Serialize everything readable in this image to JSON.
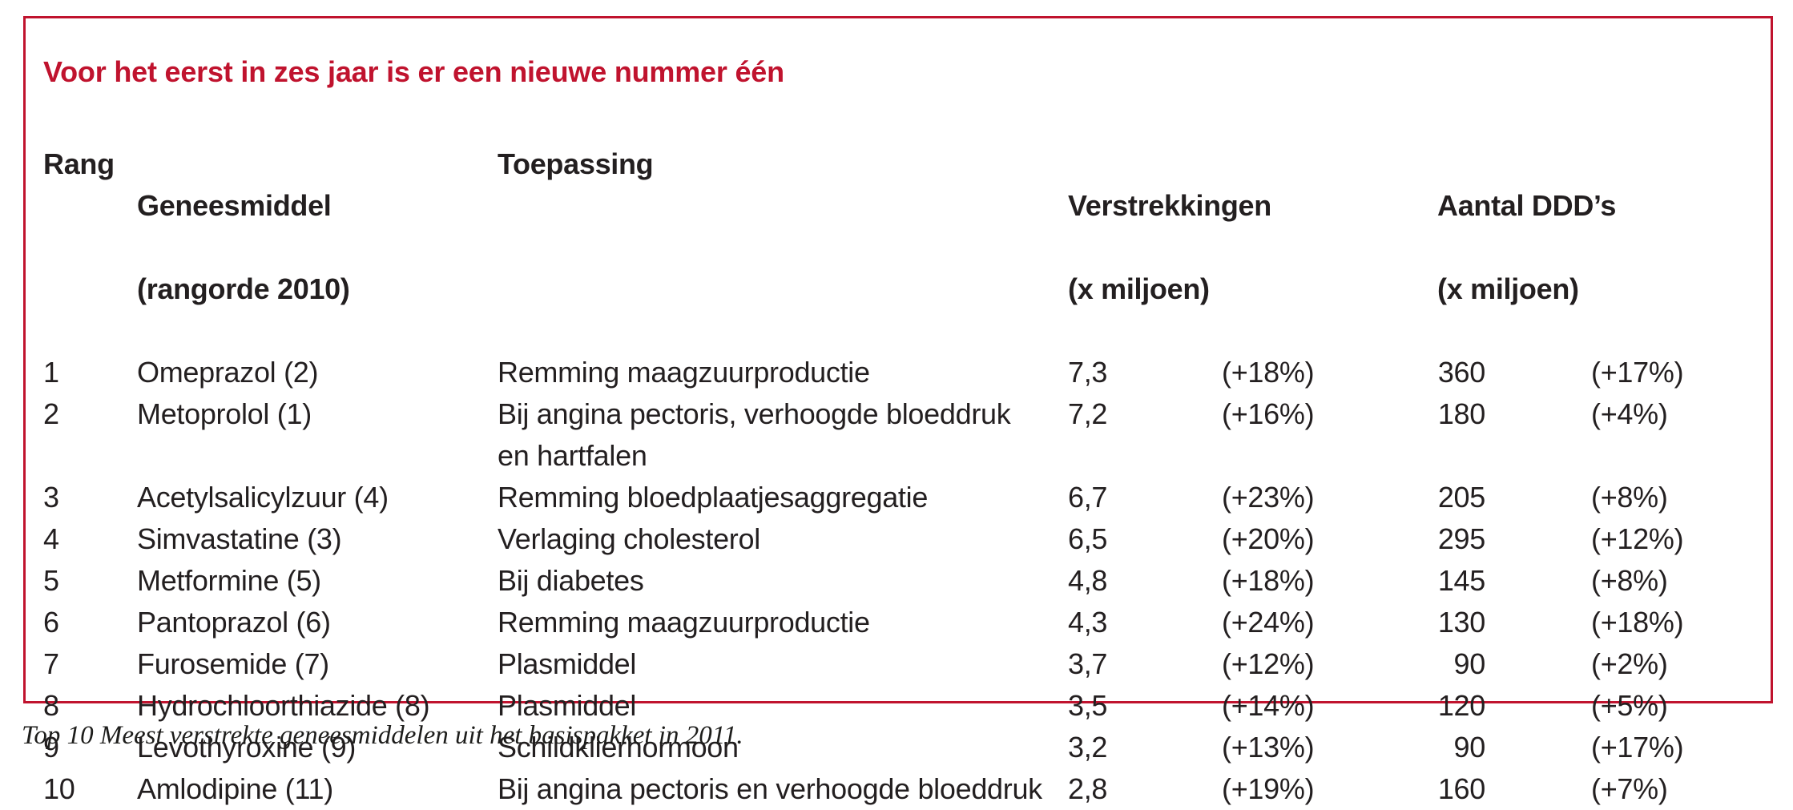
{
  "title": "Voor het eerst in zes jaar is er een nieuwe nummer één",
  "table": {
    "headers": {
      "rang": "Rang",
      "geneesmiddel_line1": "Geneesmiddel",
      "geneesmiddel_line2": "(rangorde 2010)",
      "toepassing": "Toepassing",
      "verstrekkingen_line1": "Verstrekkingen",
      "verstrekkingen_line2": "(x miljoen)",
      "ddd_line1": "Aantal DDD’s",
      "ddd_line2": "(x miljoen)"
    },
    "rows": [
      {
        "rang": "1",
        "geneesmiddel": "Omeprazol (2)",
        "toepassing": "Remming maagzuurproductie",
        "verstrekkingen": "7,3",
        "verstrekkingen_pct": "(+18%)",
        "ddd": "360",
        "ddd_pct": "(+17%)"
      },
      {
        "rang": "2",
        "geneesmiddel": "Metoprolol (1)",
        "toepassing": "Bij angina pectoris, verhoogde bloeddruk\nen hartfalen",
        "verstrekkingen": "7,2",
        "verstrekkingen_pct": "(+16%)",
        "ddd": "180",
        "ddd_pct": "(+4%)"
      },
      {
        "rang": "3",
        "geneesmiddel": "Acetylsalicylzuur (4)",
        "toepassing": "Remming bloedplaatjesaggregatie",
        "verstrekkingen": "6,7",
        "verstrekkingen_pct": "(+23%)",
        "ddd": "205",
        "ddd_pct": "(+8%)"
      },
      {
        "rang": "4",
        "geneesmiddel": "Simvastatine (3)",
        "toepassing": "Verlaging cholesterol",
        "verstrekkingen": "6,5",
        "verstrekkingen_pct": "(+20%)",
        "ddd": "295",
        "ddd_pct": "(+12%)"
      },
      {
        "rang": "5",
        "geneesmiddel": "Metformine (5)",
        "toepassing": "Bij diabetes",
        "verstrekkingen": "4,8",
        "verstrekkingen_pct": "(+18%)",
        "ddd": "145",
        "ddd_pct": "(+8%)"
      },
      {
        "rang": "6",
        "geneesmiddel": "Pantoprazol (6)",
        "toepassing": "Remming maagzuurproductie",
        "verstrekkingen": "4,3",
        "verstrekkingen_pct": "(+24%)",
        "ddd": "130",
        "ddd_pct": "(+18%)"
      },
      {
        "rang": "7",
        "geneesmiddel": "Furosemide (7)",
        "toepassing": "Plasmiddel",
        "verstrekkingen": "3,7",
        "verstrekkingen_pct": "(+12%)",
        "ddd": "90",
        "ddd_pct": "(+2%)"
      },
      {
        "rang": "8",
        "geneesmiddel": "Hydrochloorthiazide (8)",
        "toepassing": "Plasmiddel",
        "verstrekkingen": "3,5",
        "verstrekkingen_pct": "(+14%)",
        "ddd": "120",
        "ddd_pct": "(+5%)"
      },
      {
        "rang": "9",
        "geneesmiddel": "Levothyroxine (9)",
        "toepassing": "Schildklierhormoon",
        "verstrekkingen": "3,2",
        "verstrekkingen_pct": "(+13%)",
        "ddd": "90",
        "ddd_pct": "(+17%)"
      },
      {
        "rang": "10",
        "geneesmiddel": "Amlodipine (11)",
        "toepassing": "Bij angina pectoris en verhoogde bloeddruk",
        "verstrekkingen": "2,8",
        "verstrekkingen_pct": "(+19%)",
        "ddd": "160",
        "ddd_pct": "(+7%)"
      }
    ]
  },
  "caption": "Top 10 Meest verstrekte geneesmiddelen uit het basispakket in 2011.",
  "colors": {
    "accent_red": "#c0132e",
    "text": "#231f20"
  }
}
